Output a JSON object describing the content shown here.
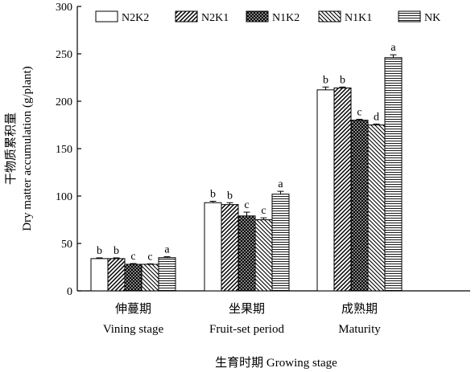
{
  "chart_data": {
    "type": "bar",
    "ylabel_cn": "干物质累积量",
    "ylabel_en": "Dry matter accumulation (g/plant)",
    "xlabel": "生育时期 Growing stage",
    "ylim": [
      0,
      300
    ],
    "yticks": [
      0,
      50,
      100,
      150,
      200,
      250,
      300
    ],
    "categories": [
      {
        "cn": "伸蔓期",
        "en": "Vining stage"
      },
      {
        "cn": "坐果期",
        "en": "Fruit-set period"
      },
      {
        "cn": "成熟期",
        "en": "Maturity"
      }
    ],
    "legend_position": "top",
    "series": [
      {
        "name": "N2K2",
        "pattern": "white",
        "values": [
          34,
          93,
          212
        ],
        "errors": [
          0.8,
          1.5,
          3
        ],
        "labels": [
          "b",
          "b",
          "b"
        ]
      },
      {
        "name": "N2K1",
        "pattern": "diag-right",
        "values": [
          34,
          91,
          214
        ],
        "errors": [
          0.8,
          2,
          1
        ],
        "labels": [
          "b",
          "b",
          "b"
        ]
      },
      {
        "name": "N1K2",
        "pattern": "crosshatch",
        "values": [
          28,
          79,
          180
        ],
        "errors": [
          0.8,
          4,
          1
        ],
        "labels": [
          "c",
          "c",
          "c"
        ]
      },
      {
        "name": "N1K1",
        "pattern": "diag-left",
        "values": [
          28,
          75,
          175
        ],
        "errors": [
          0.5,
          2,
          1
        ],
        "labels": [
          "c",
          "c",
          "d"
        ]
      },
      {
        "name": "NK",
        "pattern": "hlines",
        "values": [
          35,
          102,
          246
        ],
        "errors": [
          1,
          3,
          3
        ],
        "labels": [
          "a",
          "a",
          "a"
        ]
      }
    ]
  }
}
